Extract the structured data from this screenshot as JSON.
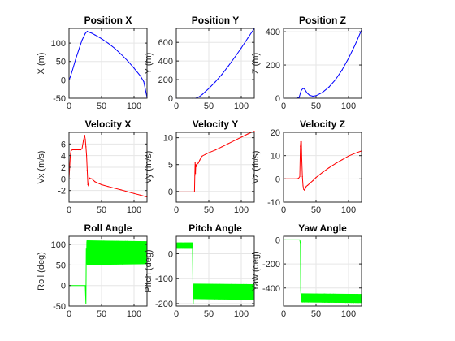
{
  "chart_data": [
    {
      "type": "line",
      "title": "Position X",
      "xlabel": "",
      "ylabel": "X (m)",
      "xlim": [
        0,
        120
      ],
      "ylim": [
        -50,
        140
      ],
      "xticks": [
        0,
        50,
        100
      ],
      "yticks": [
        -50,
        0,
        50,
        100
      ],
      "grid": true,
      "color": "#0000ff",
      "series": [
        {
          "x": [
            0,
            2,
            5,
            10,
            15,
            20,
            25,
            28,
            30,
            35,
            40,
            50,
            60,
            70,
            80,
            90,
            100,
            110,
            115,
            120
          ],
          "y": [
            0,
            8,
            25,
            55,
            82,
            108,
            126,
            132,
            130,
            127,
            122,
            112,
            100,
            86,
            70,
            52,
            32,
            10,
            -5,
            -48
          ]
        }
      ]
    },
    {
      "type": "line",
      "title": "Position Y",
      "xlabel": "",
      "ylabel": "Y (m)",
      "xlim": [
        0,
        120
      ],
      "ylim": [
        0,
        750
      ],
      "xticks": [
        0,
        50,
        100
      ],
      "yticks": [
        0,
        200,
        400,
        600
      ],
      "grid": true,
      "color": "#0000ff",
      "series": [
        {
          "x": [
            0,
            25,
            30,
            35,
            40,
            50,
            60,
            70,
            80,
            90,
            100,
            110,
            120
          ],
          "y": [
            0,
            0,
            0,
            15,
            40,
            105,
            175,
            255,
            345,
            440,
            540,
            645,
            750
          ]
        }
      ]
    },
    {
      "type": "line",
      "title": "Position Z",
      "xlabel": "",
      "ylabel": "Z (m)",
      "xlim": [
        0,
        120
      ],
      "ylim": [
        0,
        420
      ],
      "xticks": [
        0,
        50,
        100
      ],
      "yticks": [
        0,
        200,
        400
      ],
      "grid": true,
      "color": "#0000ff",
      "series": [
        {
          "x": [
            0,
            20,
            24,
            27,
            30,
            33,
            36,
            40,
            45,
            50,
            60,
            70,
            80,
            90,
            100,
            110,
            120
          ],
          "y": [
            0,
            0,
            5,
            45,
            60,
            52,
            32,
            18,
            12,
            15,
            35,
            68,
            112,
            170,
            240,
            320,
            410
          ]
        }
      ]
    },
    {
      "type": "line",
      "title": "Velocity X",
      "xlabel": "",
      "ylabel": "Vx (m/s)",
      "xlim": [
        0,
        120
      ],
      "ylim": [
        -4,
        8
      ],
      "xticks": [
        0,
        50,
        100
      ],
      "yticks": [
        -2,
        0,
        2,
        4,
        6
      ],
      "grid": true,
      "color": "#ff0000",
      "series": [
        {
          "x": [
            0,
            1,
            2,
            3,
            5,
            10,
            15,
            18,
            20,
            22,
            24,
            25,
            26,
            27,
            28,
            29,
            30,
            31,
            32,
            35,
            40,
            50,
            60,
            70,
            80,
            90,
            100,
            110,
            120
          ],
          "y": [
            0,
            2,
            4,
            4.8,
            5.0,
            5.0,
            5.0,
            5.0,
            5.2,
            6.5,
            7.5,
            6.8,
            5.5,
            4.0,
            1.5,
            -1.0,
            -1.2,
            0.2,
            0.1,
            0.0,
            -0.5,
            -1.0,
            -1.3,
            -1.6,
            -1.9,
            -2.2,
            -2.5,
            -2.8,
            -3.1
          ]
        }
      ]
    },
    {
      "type": "line",
      "title": "Velocity Y",
      "xlabel": "",
      "ylabel": "Vy (m/s)",
      "xlim": [
        0,
        120
      ],
      "ylim": [
        -2,
        11
      ],
      "xticks": [
        0,
        50,
        100
      ],
      "yticks": [
        0,
        5,
        10
      ],
      "grid": true,
      "color": "#ff0000",
      "series": [
        {
          "x": [
            0,
            28,
            28.5,
            29,
            29.5,
            30,
            30.5,
            31,
            32,
            34,
            36,
            38,
            40,
            45,
            50,
            60,
            70,
            80,
            90,
            100,
            110,
            120
          ],
          "y": [
            -0.1,
            -0.1,
            3,
            5.4,
            3.3,
            5.0,
            4.6,
            4.9,
            5.1,
            5.3,
            5.8,
            6.3,
            6.6,
            6.9,
            7.2,
            7.7,
            8.3,
            8.9,
            9.5,
            10.1,
            10.7,
            11.2
          ]
        }
      ]
    },
    {
      "type": "line",
      "title": "Velocity Z",
      "xlabel": "",
      "ylabel": "Vz (m/s)",
      "xlim": [
        0,
        120
      ],
      "ylim": [
        -10,
        20
      ],
      "xticks": [
        0,
        50,
        100
      ],
      "yticks": [
        -10,
        0,
        10,
        20
      ],
      "grid": true,
      "color": "#ff0000",
      "series": [
        {
          "x": [
            0,
            20,
            23,
            25,
            26,
            26.5,
            27,
            27.5,
            28,
            29,
            30,
            31,
            32,
            33,
            35,
            37,
            40,
            45,
            50,
            60,
            70,
            80,
            90,
            100,
            110,
            120
          ],
          "y": [
            0,
            0,
            0.2,
            1,
            14,
            16,
            12,
            16,
            9,
            1,
            -3,
            -4.5,
            -4.8,
            -4.5,
            -3.2,
            -2.8,
            -2,
            -0.8,
            0.6,
            2.8,
            4.8,
            6.6,
            8.2,
            9.8,
            11.0,
            12.0
          ]
        }
      ]
    },
    {
      "type": "line",
      "title": "Roll Angle",
      "xlabel": "",
      "ylabel": "Roll (deg)",
      "xlim": [
        0,
        120
      ],
      "ylim": [
        -50,
        120
      ],
      "xticks": [
        0,
        50,
        100
      ],
      "yticks": [
        -50,
        0,
        50,
        100
      ],
      "grid": true,
      "color": "#00ff00",
      "baseline": {
        "x": [
          0,
          25,
          26,
          26.5,
          27
        ],
        "y": [
          0,
          0,
          -45,
          90,
          60
        ]
      },
      "band": {
        "x0": 27,
        "x1": 120,
        "low": 50,
        "high": 110,
        "low_end": 52,
        "high_end": 108
      }
    },
    {
      "type": "line",
      "title": "Pitch Angle",
      "xlabel": "",
      "ylabel": "Pitch (deg)",
      "xlim": [
        0,
        120
      ],
      "ylim": [
        -210,
        70
      ],
      "xticks": [
        0,
        50,
        100
      ],
      "yticks": [
        -200,
        -100,
        0
      ],
      "grid": true,
      "color": "#00ff00",
      "initial_band": {
        "x0": 0,
        "x1": 25,
        "low": 20,
        "high": 45
      },
      "band": {
        "x0": 27,
        "x1": 120,
        "low": -182,
        "high": -120,
        "low_end": -185,
        "high_end": -122
      }
    },
    {
      "type": "line",
      "title": "Yaw Angle",
      "xlabel": "",
      "ylabel": "Yaw (deg)",
      "xlim": [
        0,
        120
      ],
      "ylim": [
        -550,
        30
      ],
      "xticks": [
        0,
        50,
        100
      ],
      "yticks": [
        -400,
        -200,
        0
      ],
      "grid": true,
      "color": "#00ff00",
      "baseline": {
        "x": [
          0,
          25,
          26,
          26.5,
          27
        ],
        "y": [
          0,
          0,
          -30,
          -420,
          -470
        ]
      },
      "band": {
        "x0": 27,
        "x1": 120,
        "low": -520,
        "high": -445,
        "low_end": -525,
        "high_end": -450
      }
    }
  ]
}
